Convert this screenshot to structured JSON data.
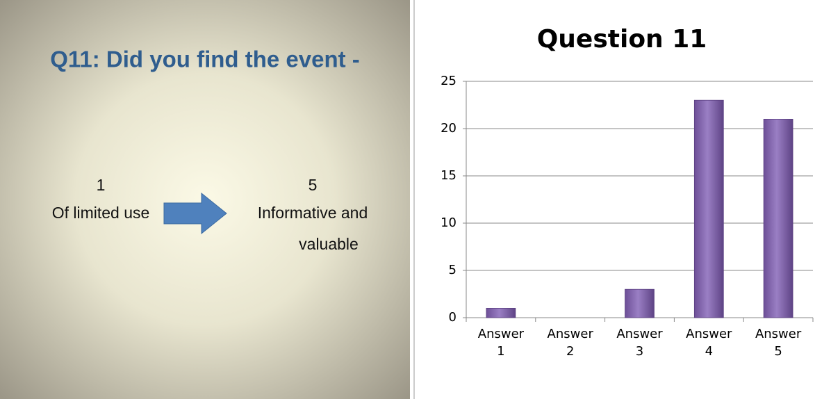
{
  "slide": {
    "title": "Q11: Did you find the event -",
    "left_number": "1",
    "left_label": "Of limited use",
    "right_number": "5",
    "right_label_lines": [
      "Informative and",
      "valuable"
    ]
  },
  "chart_data": {
    "type": "bar",
    "title": "Question 11",
    "categories": [
      "Answer 1",
      "Answer 2",
      "Answer 3",
      "Answer 4",
      "Answer 5"
    ],
    "values": [
      1,
      0,
      3,
      23,
      21
    ],
    "color": "#8064a2",
    "ylim": [
      0,
      25
    ],
    "yticks": [
      0,
      5,
      10,
      15,
      20,
      25
    ],
    "grid": true
  }
}
